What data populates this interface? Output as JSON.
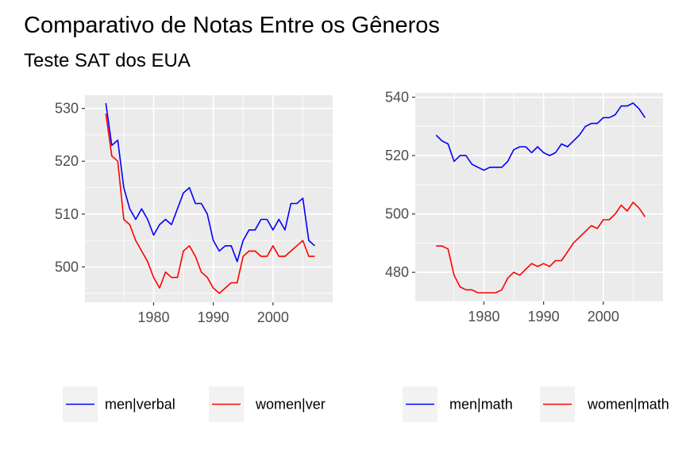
{
  "title": "Comparativo de Notas Entre os Gêneros",
  "subtitle": "Teste SAT dos EUA",
  "chart_data": [
    {
      "type": "line",
      "xlim": [
        1968.5,
        2010
      ],
      "ylim": [
        493.3,
        532.5
      ],
      "x_ticks": [
        1980,
        1990,
        2000
      ],
      "y_ticks": [
        500,
        510,
        520,
        530
      ],
      "grid": true,
      "legend_placement": "bottom",
      "series": [
        {
          "name": "men|verbal",
          "color": "#0000ff",
          "x": [
            1972,
            1973,
            1974,
            1975,
            1976,
            1977,
            1978,
            1979,
            1980,
            1981,
            1982,
            1983,
            1984,
            1985,
            1986,
            1987,
            1988,
            1989,
            1990,
            1991,
            1992,
            1993,
            1994,
            1995,
            1996,
            1997,
            1998,
            1999,
            2000,
            2001,
            2002,
            2003,
            2004,
            2005,
            2006,
            2007
          ],
          "values": [
            531,
            523,
            524,
            515,
            511,
            509,
            511,
            509,
            506,
            508,
            509,
            508,
            511,
            514,
            515,
            512,
            512,
            510,
            505,
            503,
            504,
            504,
            501,
            505,
            507,
            507,
            509,
            509,
            507,
            509,
            507,
            512,
            512,
            513,
            505,
            504
          ]
        },
        {
          "name": "women|verbal",
          "color": "#ff0000",
          "x": [
            1972,
            1973,
            1974,
            1975,
            1976,
            1977,
            1978,
            1979,
            1980,
            1981,
            1982,
            1983,
            1984,
            1985,
            1986,
            1987,
            1988,
            1989,
            1990,
            1991,
            1992,
            1993,
            1994,
            1995,
            1996,
            1997,
            1998,
            1999,
            2000,
            2001,
            2002,
            2003,
            2004,
            2005,
            2006,
            2007
          ],
          "values": [
            529,
            521,
            520,
            509,
            508,
            505,
            503,
            501,
            498,
            496,
            499,
            498,
            498,
            503,
            504,
            502,
            499,
            498,
            496,
            495,
            496,
            497,
            497,
            502,
            503,
            503,
            502,
            502,
            504,
            502,
            502,
            503,
            504,
            505,
            502,
            502
          ]
        }
      ],
      "legend": [
        "men|verbal",
        "women|ver"
      ]
    },
    {
      "type": "line",
      "xlim": [
        1968.5,
        2010
      ],
      "ylim": [
        470,
        541.5
      ],
      "x_ticks": [
        1980,
        1990,
        2000
      ],
      "y_ticks": [
        480,
        500,
        520,
        540
      ],
      "grid": true,
      "legend_placement": "bottom",
      "series": [
        {
          "name": "men|math",
          "color": "#0000ff",
          "x": [
            1972,
            1973,
            1974,
            1975,
            1976,
            1977,
            1978,
            1979,
            1980,
            1981,
            1982,
            1983,
            1984,
            1985,
            1986,
            1987,
            1988,
            1989,
            1990,
            1991,
            1992,
            1993,
            1994,
            1995,
            1996,
            1997,
            1998,
            1999,
            2000,
            2001,
            2002,
            2003,
            2004,
            2005,
            2006,
            2007
          ],
          "values": [
            527,
            525,
            524,
            518,
            520,
            520,
            517,
            516,
            515,
            516,
            516,
            516,
            518,
            522,
            523,
            523,
            521,
            523,
            521,
            520,
            521,
            524,
            523,
            525,
            527,
            530,
            531,
            531,
            533,
            533,
            534,
            537,
            537,
            538,
            536,
            533
          ]
        },
        {
          "name": "women|math",
          "color": "#ff0000",
          "x": [
            1972,
            1973,
            1974,
            1975,
            1976,
            1977,
            1978,
            1979,
            1980,
            1981,
            1982,
            1983,
            1984,
            1985,
            1986,
            1987,
            1988,
            1989,
            1990,
            1991,
            1992,
            1993,
            1994,
            1995,
            1996,
            1997,
            1998,
            1999,
            2000,
            2001,
            2002,
            2003,
            2004,
            2005,
            2006,
            2007
          ],
          "values": [
            489,
            489,
            488,
            479,
            475,
            474,
            474,
            473,
            473,
            473,
            473,
            474,
            478,
            480,
            479,
            481,
            483,
            482,
            483,
            482,
            484,
            484,
            487,
            490,
            492,
            494,
            496,
            495,
            498,
            498,
            500,
            503,
            501,
            504,
            502,
            499
          ]
        }
      ],
      "legend": [
        "men|math",
        "women|math"
      ]
    }
  ]
}
